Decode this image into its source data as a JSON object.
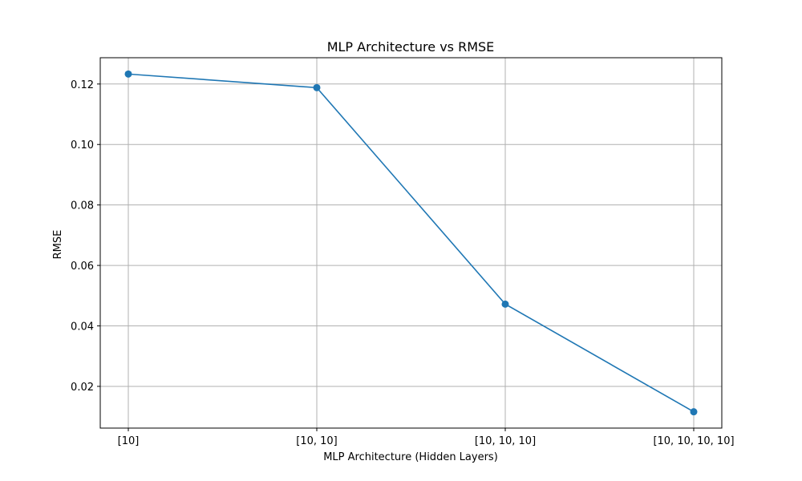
{
  "chart_data": {
    "type": "line",
    "title": "MLP Architecture vs RMSE",
    "xlabel": "MLP Architecture (Hidden Layers)",
    "ylabel": "RMSE",
    "categories": [
      "[10]",
      "[10, 10]",
      "[10, 10, 10]",
      "[10, 10, 10, 10]"
    ],
    "values": [
      0.1233,
      0.1188,
      0.0472,
      0.0116
    ],
    "ylim": [
      0.0062,
      0.1287
    ],
    "yticks": [
      0.02,
      0.04,
      0.06,
      0.08,
      0.1,
      0.12
    ],
    "ytick_labels": [
      "0.02",
      "0.04",
      "0.06",
      "0.08",
      "0.10",
      "0.12"
    ],
    "grid": true,
    "marker": "circle",
    "series_color": "#1f77b4",
    "grid_color": "#b0b0b0"
  }
}
